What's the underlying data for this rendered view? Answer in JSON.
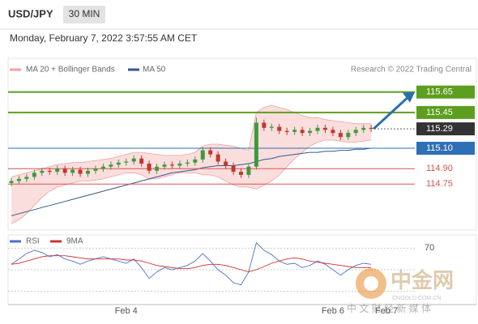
{
  "header": {
    "symbol": "USD/JPY",
    "timeframe": "30 MIN",
    "timestamp": "Monday, February 7, 2022 3:57:55 AM CET"
  },
  "credit": "Research © 2022 Trading Central",
  "watermark": {
    "brand": "中金网",
    "site": "CNGOLD.COM.CN",
    "tagline": "中 文 财 经 新 媒 体"
  },
  "chart_data": [
    {
      "type": "candlestick",
      "up_color": "#3d9a3d",
      "down_color": "#c0392b",
      "categories": [
        null,
        null,
        null,
        null,
        null,
        null,
        null,
        null,
        null,
        null,
        null,
        null,
        null,
        null,
        null,
        "Feb 4",
        null,
        null,
        null,
        null,
        null,
        null,
        null,
        null,
        null,
        null,
        null,
        null,
        null,
        null,
        null,
        null,
        null,
        null,
        null,
        null,
        null,
        null,
        null,
        null,
        null,
        null,
        "Feb 6",
        null,
        null,
        null,
        null,
        null,
        null,
        "Feb 7",
        null,
        null,
        null
      ],
      "open": [
        114.76,
        114.78,
        114.8,
        114.82,
        114.86,
        114.88,
        114.87,
        114.9,
        114.86,
        114.89,
        114.85,
        114.88,
        114.9,
        114.92,
        114.94,
        114.96,
        114.97,
        115.0,
        114.95,
        114.88,
        114.92,
        114.94,
        114.93,
        114.95,
        114.96,
        114.99,
        115.08,
        115.04,
        114.97,
        114.93,
        114.87,
        114.84,
        114.92,
        115.35,
        115.3,
        115.31,
        115.27,
        115.26,
        115.28,
        115.25,
        115.27,
        115.3,
        115.28,
        115.25,
        115.21,
        115.25,
        115.28,
        115.3,
        null,
        null,
        null,
        null,
        null
      ],
      "high": [
        114.81,
        114.83,
        114.85,
        114.89,
        114.91,
        114.91,
        114.93,
        114.93,
        114.92,
        114.92,
        114.91,
        114.93,
        114.95,
        114.97,
        114.99,
        115.0,
        115.03,
        115.03,
        114.98,
        114.95,
        114.97,
        114.97,
        114.98,
        114.99,
        115.02,
        115.11,
        115.11,
        115.07,
        115.0,
        114.96,
        114.9,
        114.95,
        115.4,
        115.38,
        115.34,
        115.34,
        115.3,
        115.31,
        115.31,
        115.3,
        115.33,
        115.33,
        115.31,
        115.28,
        115.28,
        115.31,
        115.33,
        115.33,
        null,
        null,
        null,
        null,
        null
      ],
      "low": [
        114.73,
        114.75,
        114.77,
        114.79,
        114.83,
        114.84,
        114.84,
        114.83,
        114.83,
        114.82,
        114.82,
        114.85,
        114.87,
        114.89,
        114.91,
        114.93,
        114.94,
        114.92,
        114.85,
        114.85,
        114.89,
        114.9,
        114.9,
        114.92,
        114.93,
        114.96,
        115.01,
        114.94,
        114.9,
        114.84,
        114.81,
        114.81,
        114.89,
        115.27,
        115.27,
        115.24,
        115.23,
        115.23,
        115.22,
        115.22,
        115.24,
        115.25,
        115.22,
        115.18,
        115.18,
        115.22,
        115.25,
        115.26,
        null,
        null,
        null,
        null,
        null
      ],
      "close": [
        114.78,
        114.8,
        114.82,
        114.86,
        114.88,
        114.87,
        114.9,
        114.86,
        114.89,
        114.85,
        114.88,
        114.9,
        114.92,
        114.94,
        114.96,
        114.97,
        115.0,
        114.95,
        114.88,
        114.92,
        114.94,
        114.93,
        114.95,
        114.96,
        114.99,
        115.08,
        115.04,
        114.97,
        114.93,
        114.87,
        114.84,
        114.92,
        115.35,
        115.3,
        115.31,
        115.27,
        115.26,
        115.28,
        115.25,
        115.27,
        115.3,
        115.28,
        115.25,
        115.21,
        115.25,
        115.28,
        115.3,
        115.29,
        null,
        null,
        null,
        null,
        null
      ],
      "series": [
        {
          "name": "MA 20 + Bollinger Bands",
          "color": "#f2a0a0",
          "upper": [
            114.82,
            114.84,
            114.86,
            114.88,
            114.9,
            114.92,
            114.94,
            114.95,
            114.96,
            114.96,
            114.97,
            114.98,
            114.99,
            115.0,
            115.02,
            115.04,
            115.06,
            115.06,
            115.05,
            115.04,
            115.03,
            115.03,
            115.03,
            115.04,
            115.06,
            115.12,
            115.14,
            115.14,
            115.13,
            115.12,
            115.1,
            115.08,
            115.45,
            115.5,
            115.52,
            115.5,
            115.48,
            115.45,
            115.42,
            115.4,
            115.4,
            115.38,
            115.37,
            115.36,
            115.35,
            115.34,
            115.34,
            115.34,
            null,
            null,
            null,
            null,
            null
          ],
          "lower": [
            114.36,
            114.4,
            114.46,
            114.54,
            114.62,
            114.68,
            114.72,
            114.74,
            114.76,
            114.78,
            114.78,
            114.79,
            114.8,
            114.82,
            114.84,
            114.86,
            114.86,
            114.84,
            114.8,
            114.8,
            114.82,
            114.84,
            114.86,
            114.86,
            114.86,
            114.84,
            114.84,
            114.82,
            114.78,
            114.74,
            114.72,
            114.72,
            114.7,
            114.74,
            114.78,
            114.84,
            114.92,
            115.0,
            115.06,
            115.12,
            115.16,
            115.18,
            115.18,
            115.17,
            115.16,
            115.16,
            115.17,
            115.18,
            null,
            null,
            null,
            null,
            null
          ]
        },
        {
          "name": "MA 50",
          "color": "#34588a",
          "values": [
            114.44,
            114.46,
            114.48,
            114.5,
            114.52,
            114.54,
            114.56,
            114.58,
            114.6,
            114.62,
            114.64,
            114.66,
            114.68,
            114.7,
            114.72,
            114.74,
            114.76,
            114.78,
            114.8,
            114.82,
            114.84,
            114.86,
            114.87,
            114.88,
            114.89,
            114.91,
            114.92,
            114.93,
            114.93,
            114.93,
            114.94,
            114.95,
            114.97,
            114.99,
            115.0,
            115.02,
            115.03,
            115.04,
            115.05,
            115.06,
            115.06,
            115.07,
            115.07,
            115.08,
            115.08,
            115.09,
            115.09,
            115.1,
            null,
            null,
            null,
            null,
            null
          ]
        }
      ],
      "levels": [
        {
          "value": 115.65,
          "color": "#5c9e1e",
          "style": "box"
        },
        {
          "value": 115.45,
          "color": "#5c9e1e",
          "style": "box"
        },
        {
          "value": 115.29,
          "color": "#333333",
          "style": "current"
        },
        {
          "value": 115.1,
          "label": "115.10",
          "color": "#2f6fb5",
          "style": "box"
        },
        {
          "value": 114.9,
          "label": "114.90",
          "color": "#d9534f",
          "style": "text"
        },
        {
          "value": 114.75,
          "color": "#d9534f",
          "style": "text"
        }
      ],
      "ylim": [
        114.3,
        115.98
      ]
    },
    {
      "type": "line",
      "ylim": [
        20,
        80
      ],
      "yticks": [
        70
      ],
      "gridlines": [
        30,
        50,
        70
      ],
      "series": [
        {
          "name": "RSI",
          "color": "#4a72c8",
          "values": [
            55,
            60,
            65,
            68,
            66,
            62,
            64,
            60,
            58,
            55,
            58,
            60,
            62,
            60,
            58,
            56,
            60,
            52,
            42,
            48,
            52,
            50,
            52,
            54,
            58,
            65,
            58,
            50,
            45,
            38,
            36,
            48,
            75,
            68,
            64,
            58,
            55,
            56,
            52,
            54,
            58,
            55,
            50,
            45,
            50,
            54,
            56,
            55,
            null,
            null,
            null,
            null,
            null
          ]
        },
        {
          "name": "9MA",
          "color": "#d03030",
          "values": [
            55,
            56,
            58,
            60,
            62,
            63,
            63,
            63,
            62,
            61,
            60,
            60,
            60,
            60,
            60,
            59,
            59,
            58,
            56,
            54,
            53,
            52,
            51,
            51,
            52,
            54,
            55,
            55,
            54,
            52,
            50,
            48,
            50,
            53,
            56,
            58,
            60,
            61,
            60,
            58,
            57,
            56,
            55,
            54,
            53,
            52,
            52,
            52,
            null,
            null,
            null,
            null,
            null
          ]
        }
      ]
    }
  ]
}
